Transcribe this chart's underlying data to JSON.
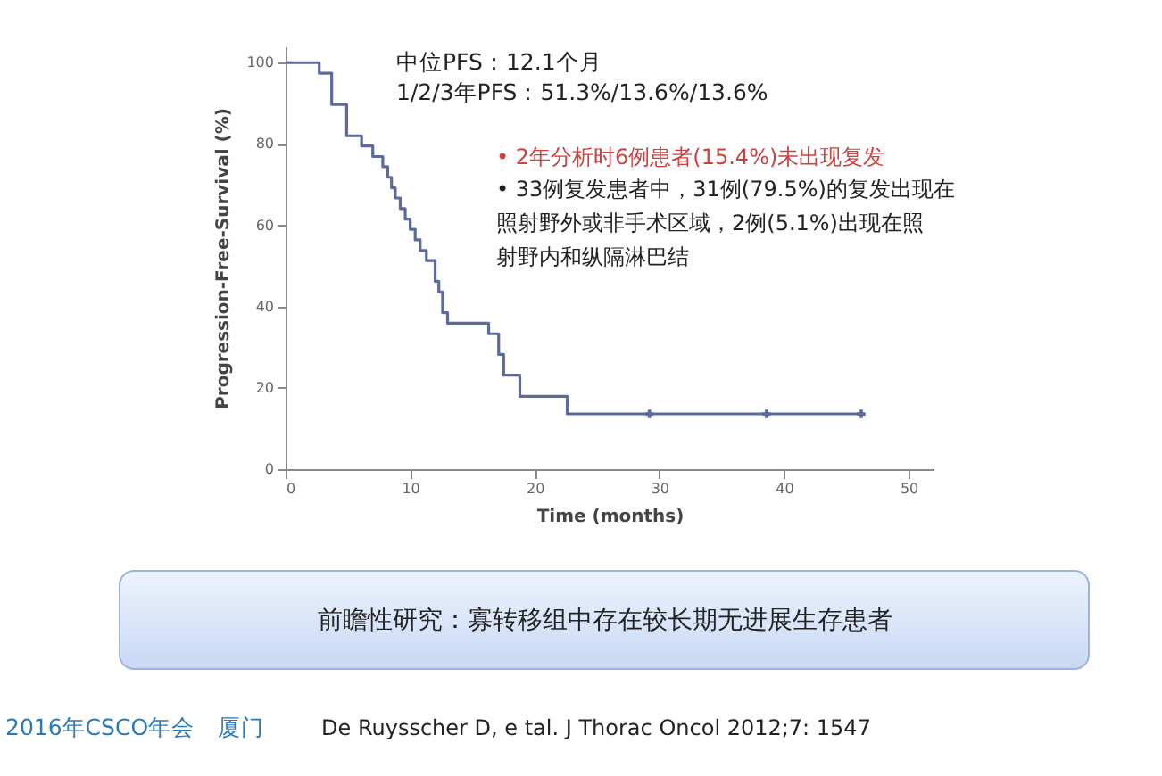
{
  "chart_data": {
    "type": "step",
    "xlabel": "Time (months)",
    "ylabel": "Progression-Free-Survival (%)",
    "xlim": [
      0,
      52
    ],
    "ylim": [
      0,
      104
    ],
    "xticks": [
      0,
      10,
      20,
      30,
      40,
      50
    ],
    "yticks": [
      0,
      20,
      40,
      60,
      80,
      100
    ],
    "grid": false,
    "series": [
      {
        "color": "#5b6b9b",
        "marker": "none",
        "line_style": "solid",
        "x": [
          0,
          2.7,
          3.7,
          4.9,
          6.1,
          7,
          7.8,
          8.2,
          8.5,
          8.8,
          9.2,
          9.6,
          10,
          10.4,
          10.8,
          11.3,
          12,
          12.3,
          12.6,
          13,
          16.3,
          17.1,
          17.5,
          18.8,
          22.6,
          46.2
        ],
        "values": [
          100,
          97.4,
          89.7,
          82,
          79.5,
          76.9,
          74.4,
          71.8,
          69.2,
          66.7,
          64.1,
          61.5,
          59,
          56.4,
          53.8,
          51.3,
          46.2,
          43.6,
          38.5,
          35.9,
          33.3,
          28.2,
          23.1,
          17.9,
          13.6,
          13.6
        ]
      },
      {
        "type": "scatter",
        "color": "#5b6b9b",
        "marker": "cross",
        "x": [
          29.2,
          38.6,
          46.2
        ],
        "values": [
          13.6,
          13.6,
          13.6
        ]
      }
    ],
    "annotations": [
      "中位PFS：12.1个月",
      "1/2/3年PFS：51.3%/13.6%/13.6%",
      "• 2年分析时6例患者(15.4%)未出现复发",
      "• 33例复发患者中，31例(79.5%)的复发出现在照射野外或非手术区域，2例(5.1%)出现在照射野内和纵隔淋巴结",
      "前瞻性研究：寡转移组中存在较长期无进展生存患者",
      "2016年CSCO年会　厦门",
      "De Ruysscher D, e tal. J Thorac Oncol 2012;7: 1547"
    ]
  }
}
